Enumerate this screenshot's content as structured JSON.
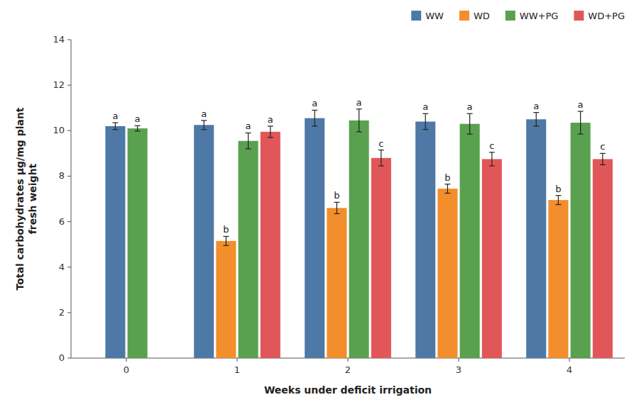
{
  "chart_data": {
    "type": "bar",
    "categories": [
      "0",
      "1",
      "2",
      "3",
      "4"
    ],
    "series": [
      {
        "name": "WW",
        "color": "#4e79a7",
        "values": [
          10.2,
          10.25,
          10.55,
          10.4,
          10.5
        ],
        "errors": [
          0.15,
          0.2,
          0.35,
          0.35,
          0.3
        ],
        "annotations": [
          "a",
          "a",
          "a",
          "a",
          "a"
        ]
      },
      {
        "name": "WD",
        "color": "#f28e2b",
        "values": [
          null,
          5.15,
          6.6,
          7.45,
          6.95
        ],
        "errors": [
          null,
          0.2,
          0.25,
          0.2,
          0.2
        ],
        "annotations": [
          null,
          "b",
          "b",
          "b",
          "b"
        ]
      },
      {
        "name": "WW+PG",
        "color": "#59a14f",
        "values": [
          10.1,
          9.55,
          10.45,
          10.3,
          10.35
        ],
        "errors": [
          0.12,
          0.35,
          0.5,
          0.45,
          0.5
        ],
        "annotations": [
          "a",
          "a",
          "a",
          "a",
          "a"
        ]
      },
      {
        "name": "WD+PG",
        "color": "#e15759",
        "values": [
          null,
          9.95,
          8.8,
          8.75,
          8.75
        ],
        "errors": [
          null,
          0.25,
          0.35,
          0.3,
          0.25
        ],
        "annotations": [
          null,
          "a",
          "c",
          "c",
          "c"
        ]
      }
    ],
    "xlabel": "Weeks under deficit irrigation",
    "ylabel": "Total carbohydrates μg/mg plant\nfresh weight",
    "ylim": [
      0,
      14
    ],
    "yticks": [
      0,
      2,
      4,
      6,
      8,
      10,
      12,
      14
    ],
    "grid": false,
    "legend": "upper right"
  }
}
